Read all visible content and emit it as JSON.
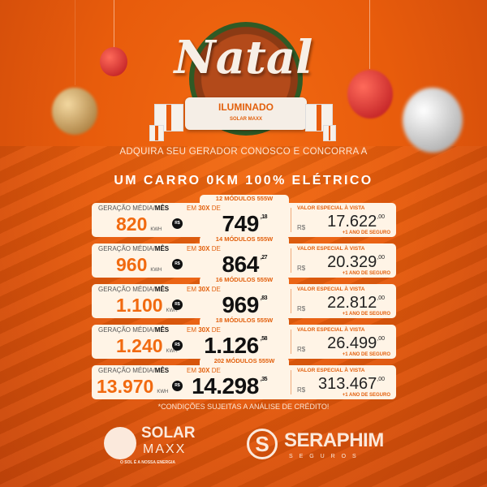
{
  "header": {
    "title": "Natal",
    "ribbon": "ILUMINADO",
    "ribbon_brand": "SOLAR MAXX"
  },
  "headline": {
    "line1": "ADQUIRA SEU GERADOR CONOSCO E CONCORRA A",
    "line2": "UM CARRO 0KM 100% ELÉTRICO"
  },
  "labels": {
    "geracao": "GERAÇÃO MÉDIA/",
    "mes": "MÊS",
    "kwh": "KWH",
    "rs_badge": "R$",
    "em": "EM ",
    "x30": "30X",
    "de": " DE",
    "valor_especial": "VALOR ESPECIAL À VISTA",
    "rs": "R$",
    "seguro": "+1 ANO DE SEGURO"
  },
  "offers": [
    {
      "modules": "12 MÓDULOS 555W",
      "kwh": "820",
      "installment": "749",
      "installment_cents": ",18",
      "total": "17.622",
      "total_cents": ",00"
    },
    {
      "modules": "14 MÓDULOS 555W",
      "kwh": "960",
      "installment": "864",
      "installment_cents": ",27",
      "total": "20.329",
      "total_cents": ",00"
    },
    {
      "modules": "16 MÓDULOS 555W",
      "kwh": "1.100",
      "installment": "969",
      "installment_cents": ",83",
      "total": "22.812",
      "total_cents": ",00"
    },
    {
      "modules": "18 MÓDULOS 555W",
      "kwh": "1.240",
      "installment": "1.126",
      "installment_cents": ",58",
      "total": "26.499",
      "total_cents": ",00"
    },
    {
      "modules": "202 MÓDULOS 555W",
      "kwh": "13.970",
      "installment": "14.298",
      "installment_cents": ",35",
      "total": "313.467",
      "total_cents": ",00"
    }
  ],
  "footnote": "*CONDIÇÕES SUJEITAS A ANÁLISE DE CRÉDITO!",
  "logos": {
    "solar_name": "SOLAR",
    "solar_name2": "MAXX",
    "solar_tagline": "O SOL É A NOSSA ENERGIA",
    "seraphim_name": "SERAPHIM",
    "seraphim_sub": "S E G U R O S"
  },
  "colors": {
    "accent": "#f16a10",
    "background": "#e85c0c",
    "card": "#fff4e6"
  }
}
